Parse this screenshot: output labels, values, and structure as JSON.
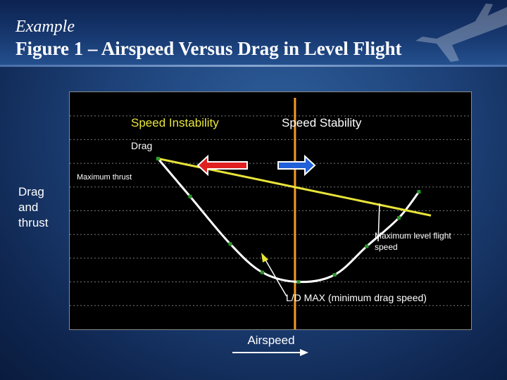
{
  "header": {
    "subtitle": "Example",
    "title": "Figure 1 – Airspeed Versus Drag in Level Flight"
  },
  "decor": {
    "background_icon": "airplane-icon"
  },
  "colors": {
    "drag_curve": "#ffffff",
    "thrust_line": "#e8e43a",
    "center_line": "#f59a23",
    "instability_arrow": "#e02020",
    "stability_arrow": "#2060d8",
    "markers": "#2a9a2a",
    "gridlines": "#7a7a7a"
  },
  "chart_data": {
    "type": "line",
    "title": "",
    "xlabel": "Airspeed",
    "ylabel": "Drag and thrust",
    "grid": true,
    "series": [
      {
        "name": "Drag",
        "x": [
          0.22,
          0.3,
          0.4,
          0.48,
          0.57,
          0.66,
          0.74,
          0.82,
          0.87
        ],
        "y": [
          0.72,
          0.56,
          0.36,
          0.24,
          0.2,
          0.23,
          0.35,
          0.47,
          0.58
        ]
      },
      {
        "name": "Maximum thrust",
        "x": [
          0.22,
          0.9
        ],
        "y": [
          0.72,
          0.48
        ]
      }
    ],
    "annotations": {
      "speed_instability": "Speed Instability",
      "speed_stability": "Speed Stability",
      "drag": "Drag",
      "maximum_thrust": "Maximum thrust",
      "max_level_flight_speed": "Maximum level flight speed",
      "ld_max": "L/D MAX (minimum drag speed)"
    }
  }
}
